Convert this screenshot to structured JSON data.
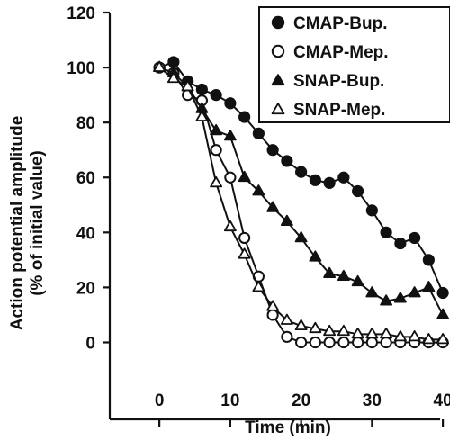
{
  "chart_data": {
    "type": "line",
    "xlabel": "Time (min)",
    "ylabel_lines": [
      "Action potential amplitude",
      "(% of initial value)"
    ],
    "xlim": [
      -7,
      41
    ],
    "ylim": [
      -28,
      120
    ],
    "x_ticks": [
      0,
      10,
      20,
      30,
      40
    ],
    "y_ticks": [
      0,
      20,
      40,
      60,
      80,
      100,
      120
    ],
    "legend_position": "top-right",
    "series": [
      {
        "name": "CMAP-Bup.",
        "marker": "circle",
        "fill": "filled",
        "points": [
          [
            0,
            100
          ],
          [
            2,
            102
          ],
          [
            4,
            95
          ],
          [
            6,
            92
          ],
          [
            8,
            90
          ],
          [
            10,
            87
          ],
          [
            12,
            82
          ],
          [
            14,
            76
          ],
          [
            16,
            70
          ],
          [
            18,
            66
          ],
          [
            20,
            62
          ],
          [
            22,
            59
          ],
          [
            24,
            58
          ],
          [
            26,
            60
          ],
          [
            28,
            55
          ],
          [
            30,
            48
          ],
          [
            32,
            40
          ],
          [
            34,
            36
          ],
          [
            36,
            38
          ],
          [
            38,
            30
          ],
          [
            40,
            18
          ]
        ]
      },
      {
        "name": "CMAP-Mep.",
        "marker": "circle",
        "fill": "open",
        "points": [
          [
            0,
            100
          ],
          [
            2,
            98
          ],
          [
            4,
            90
          ],
          [
            6,
            88
          ],
          [
            8,
            70
          ],
          [
            10,
            60
          ],
          [
            12,
            38
          ],
          [
            14,
            24
          ],
          [
            16,
            10
          ],
          [
            18,
            2
          ],
          [
            20,
            0
          ],
          [
            22,
            0
          ],
          [
            24,
            0
          ],
          [
            26,
            0
          ],
          [
            28,
            0
          ],
          [
            30,
            0
          ],
          [
            32,
            0
          ],
          [
            34,
            0
          ],
          [
            36,
            0
          ],
          [
            38,
            0
          ],
          [
            40,
            0
          ]
        ]
      },
      {
        "name": "SNAP-Bup.",
        "marker": "triangle",
        "fill": "filled",
        "points": [
          [
            0,
            100
          ],
          [
            2,
            98
          ],
          [
            4,
            93
          ],
          [
            6,
            85
          ],
          [
            8,
            77
          ],
          [
            10,
            75
          ],
          [
            12,
            60
          ],
          [
            14,
            55
          ],
          [
            16,
            49
          ],
          [
            18,
            44
          ],
          [
            20,
            38
          ],
          [
            22,
            31
          ],
          [
            24,
            25
          ],
          [
            26,
            24
          ],
          [
            28,
            22
          ],
          [
            30,
            18
          ],
          [
            32,
            15
          ],
          [
            34,
            16
          ],
          [
            36,
            18
          ],
          [
            38,
            20
          ],
          [
            40,
            10
          ]
        ]
      },
      {
        "name": "SNAP-Mep.",
        "marker": "triangle",
        "fill": "open",
        "points": [
          [
            0,
            100
          ],
          [
            2,
            96
          ],
          [
            4,
            93
          ],
          [
            6,
            82
          ],
          [
            8,
            58
          ],
          [
            10,
            42
          ],
          [
            12,
            32
          ],
          [
            14,
            20
          ],
          [
            16,
            13
          ],
          [
            18,
            8
          ],
          [
            20,
            6
          ],
          [
            22,
            5
          ],
          [
            24,
            4
          ],
          [
            26,
            4
          ],
          [
            28,
            3
          ],
          [
            30,
            3
          ],
          [
            32,
            3
          ],
          [
            34,
            2
          ],
          [
            36,
            2
          ],
          [
            38,
            1
          ],
          [
            40,
            1
          ]
        ]
      }
    ]
  }
}
